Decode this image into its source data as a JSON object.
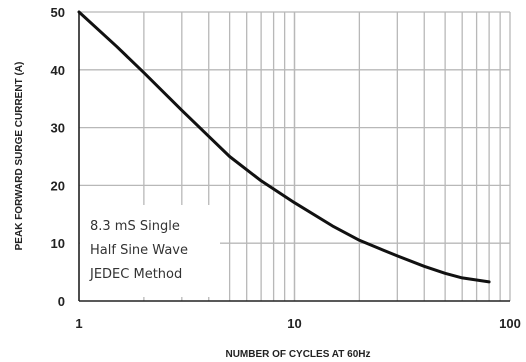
{
  "chart_data": {
    "type": "line",
    "xlabel": "NUMBER OF CYCLES AT 60Hz",
    "ylabel": "PEAK FORWARD SURGE CURRENT (A)",
    "x_scale": "log",
    "xlim": [
      1,
      100
    ],
    "ylim": [
      0,
      50
    ],
    "x_ticks": [
      1,
      10,
      100
    ],
    "x_tick_labels": [
      "1",
      "10",
      "100"
    ],
    "y_ticks": [
      0,
      10,
      20,
      30,
      40,
      50
    ],
    "y_tick_labels": [
      "0",
      "10",
      "20",
      "30",
      "40",
      "50"
    ],
    "grid": true,
    "annotation": [
      "8.3 mS Single",
      "Half Sine Wave",
      "JEDEC Method"
    ],
    "colors": {
      "line": "#111111",
      "grid": "#b8b8b8",
      "axis": "#222222"
    },
    "series": [
      {
        "x": [
          1,
          1.5,
          2,
          3,
          4,
          5,
          7,
          10,
          15,
          20,
          30,
          40,
          50,
          60,
          80
        ],
        "y": [
          50,
          44,
          39.5,
          33,
          28.5,
          25,
          20.8,
          17,
          13,
          10.5,
          7.8,
          6.0,
          4.8,
          4.0,
          3.3
        ]
      }
    ]
  }
}
